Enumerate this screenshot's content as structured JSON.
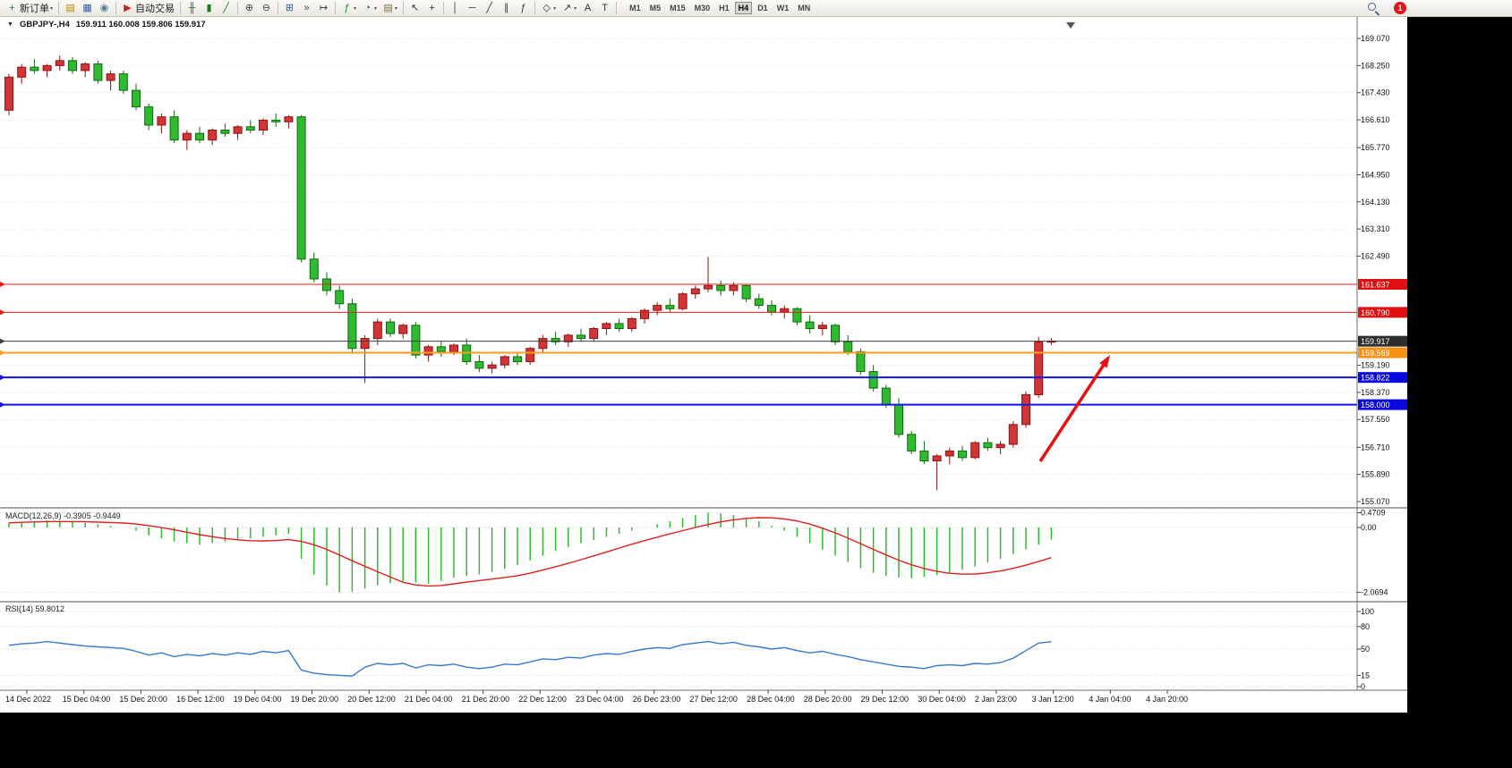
{
  "toolbar": {
    "caret_glyph": "▾",
    "notification_count": "1",
    "icons": [
      {
        "name": "new-order-icon",
        "glyph": "+",
        "color": "#168a16",
        "label": "新订单",
        "caret": true
      },
      {
        "sep": true
      },
      {
        "name": "market-watch-icon",
        "glyph": "▤",
        "color": "#b8860b"
      },
      {
        "name": "data-window-icon",
        "glyph": "▦",
        "color": "#2f5fa3"
      },
      {
        "name": "navigator-icon",
        "glyph": "◉",
        "color": "#5a7a9a"
      },
      {
        "sep": true
      },
      {
        "name": "auto-trading-icon",
        "glyph": "▶",
        "color": "#c22727",
        "label": "自动交易"
      },
      {
        "sep": true
      },
      {
        "name": "bar-chart-icon",
        "glyph": "╫",
        "color": "#1e7a1e"
      },
      {
        "name": "candlestick-chart-icon",
        "glyph": "▮",
        "color": "#1e7a1e"
      },
      {
        "name": "line-chart-icon",
        "glyph": "╱",
        "color": "#1e7a1e"
      },
      {
        "sep": true
      },
      {
        "name": "zoom-in-icon",
        "glyph": "⊕",
        "color": "#444444"
      },
      {
        "name": "zoom-out-icon",
        "glyph": "⊖",
        "color": "#444444"
      },
      {
        "sep": true
      },
      {
        "name": "tile-windows-icon",
        "glyph": "⊞",
        "color": "#2f5fa3"
      },
      {
        "name": "auto-scroll-icon",
        "glyph": "»",
        "color": "#444444"
      },
      {
        "name": "chart-shift-icon",
        "glyph": "↦",
        "color": "#444444"
      },
      {
        "sep": true
      },
      {
        "name": "indicators-icon",
        "glyph": "ƒ",
        "color": "#168a16",
        "caret": true
      },
      {
        "name": "periods-icon",
        "glyph": "◔",
        "color": "#444444",
        "caret": true
      },
      {
        "name": "templates-icon",
        "glyph": "▤",
        "color": "#8a6d3b",
        "caret": true
      },
      {
        "sep": true
      },
      {
        "name": "cursor-icon",
        "glyph": "↖",
        "color": "#333333"
      },
      {
        "name": "crosshair-icon",
        "glyph": "+",
        "color": "#333333"
      },
      {
        "sep": true
      },
      {
        "name": "vertical-line-icon",
        "glyph": "│",
        "color": "#333333"
      },
      {
        "name": "horizontal-line-icon",
        "glyph": "─",
        "color": "#333333"
      },
      {
        "name": "trendline-icon",
        "glyph": "╱",
        "color": "#333333"
      },
      {
        "name": "channel-icon",
        "glyph": "∥",
        "color": "#333333"
      },
      {
        "name": "fibonacci-icon",
        "glyph": "ƒ",
        "color": "#333333"
      },
      {
        "sep": true
      },
      {
        "name": "shapes-icon",
        "glyph": "◇",
        "color": "#333333",
        "caret": true
      },
      {
        "name": "arrows-icon",
        "glyph": "↗",
        "color": "#333333",
        "caret": true
      },
      {
        "name": "text-icon",
        "glyph": "A",
        "color": "#333333"
      },
      {
        "name": "text-label-icon",
        "glyph": "T",
        "color": "#333333"
      },
      {
        "sep": true
      }
    ],
    "timeframes": {
      "items": [
        "M1",
        "M5",
        "M15",
        "M30",
        "H1",
        "H4",
        "D1",
        "W1",
        "MN"
      ],
      "active": "H4"
    }
  },
  "chart": {
    "expander_glyph": "▼",
    "title_symbol": "GBPJPY-,H4",
    "title_ohlc": "159.911 160.008 159.806 159.917"
  },
  "chart_data": [
    {
      "type": "candlestick",
      "symbol": "GBPJPY-",
      "timeframe": "H4",
      "last_ohlc": {
        "open": 159.911,
        "high": 160.008,
        "low": 159.806,
        "close": 159.917
      },
      "ylim": [
        155.07,
        169.07
      ],
      "up_color": "#d23535",
      "down_color": "#2fba2f",
      "price_grid": [
        "169.070",
        "168.250",
        "167.430",
        "166.610",
        "165.770",
        "164.950",
        "164.130",
        "163.310",
        "162.490",
        "159.190",
        "158.370",
        "157.550",
        "156.710",
        "155.890",
        "155.070"
      ],
      "time_labels": [
        "14 Dec 2022",
        "15 Dec 04:00",
        "15 Dec 20:00",
        "16 Dec 12:00",
        "19 Dec 04:00",
        "19 Dec 20:00",
        "20 Dec 12:00",
        "21 Dec 04:00",
        "21 Dec 20:00",
        "22 Dec 12:00",
        "23 Dec 04:00",
        "26 Dec 23:00",
        "27 Dec 12:00",
        "28 Dec 04:00",
        "28 Dec 20:00",
        "29 Dec 12:00",
        "30 Dec 04:00",
        "2 Jan 23:00",
        "3 Jan 12:00",
        "4 Jan 04:00",
        "4 Jan 20:00"
      ],
      "levels": [
        {
          "price": 161.637,
          "label": "161.637",
          "color": "#f01818",
          "badge_bg": "#e01010",
          "width": 1
        },
        {
          "price": 160.79,
          "label": "160.790",
          "color": "#f01818",
          "badge_bg": "#e01010",
          "width": 1
        },
        {
          "price": 159.917,
          "label": "159.917",
          "color": "#3c3c3c",
          "badge_bg": "#2e2e2e",
          "width": 1,
          "current": true
        },
        {
          "price": 159.569,
          "label": "159.569",
          "color": "#ff9d1e",
          "badge_bg": "#f79216",
          "width": 2
        },
        {
          "price": 158.822,
          "label": "158.822",
          "color": "#1414e6",
          "badge_bg": "#0a0ae0",
          "width": 2
        },
        {
          "price": 158.0,
          "label": "158.000",
          "color": "#1414e6",
          "badge_bg": "#0a0ae0",
          "width": 2
        }
      ],
      "annotation": {
        "type": "arrow",
        "color": "#e81010",
        "from_price": 156.45,
        "to_price": 159.6,
        "direction": "up"
      },
      "candles": [
        [
          166.9,
          168.0,
          166.75,
          167.9
        ],
        [
          167.9,
          168.3,
          167.7,
          168.2
        ],
        [
          168.2,
          168.45,
          168.0,
          168.1
        ],
        [
          168.1,
          168.3,
          167.9,
          168.25
        ],
        [
          168.25,
          168.55,
          168.1,
          168.4
        ],
        [
          168.4,
          168.5,
          168.0,
          168.1
        ],
        [
          168.1,
          168.35,
          167.9,
          168.3
        ],
        [
          168.3,
          168.4,
          167.7,
          167.8
        ],
        [
          167.8,
          168.1,
          167.5,
          168.0
        ],
        [
          168.0,
          168.1,
          167.4,
          167.5
        ],
        [
          167.5,
          167.7,
          166.9,
          167.0
        ],
        [
          167.0,
          167.1,
          166.3,
          166.45
        ],
        [
          166.45,
          166.8,
          166.2,
          166.7
        ],
        [
          166.7,
          166.9,
          165.9,
          166.0
        ],
        [
          166.0,
          166.3,
          165.7,
          166.2
        ],
        [
          166.2,
          166.4,
          165.9,
          166.0
        ],
        [
          166.0,
          166.35,
          165.85,
          166.3
        ],
        [
          166.3,
          166.5,
          166.1,
          166.2
        ],
        [
          166.2,
          166.45,
          166.0,
          166.4
        ],
        [
          166.4,
          166.6,
          166.2,
          166.3
        ],
        [
          166.3,
          166.65,
          166.15,
          166.6
        ],
        [
          166.6,
          166.8,
          166.4,
          166.55
        ],
        [
          166.55,
          166.75,
          166.35,
          166.7
        ],
        [
          166.7,
          166.75,
          162.3,
          162.4
        ],
        [
          162.4,
          162.6,
          161.7,
          161.8
        ],
        [
          161.8,
          162.0,
          161.3,
          161.45
        ],
        [
          161.45,
          161.6,
          160.9,
          161.05
        ],
        [
          161.05,
          161.2,
          159.55,
          159.7
        ],
        [
          159.7,
          160.1,
          158.65,
          160.0
        ],
        [
          160.0,
          160.6,
          159.8,
          160.5
        ],
        [
          160.5,
          160.6,
          160.05,
          160.15
        ],
        [
          160.15,
          160.45,
          160.0,
          160.4
        ],
        [
          160.4,
          160.5,
          159.4,
          159.5
        ],
        [
          159.5,
          159.8,
          159.3,
          159.75
        ],
        [
          159.75,
          159.9,
          159.45,
          159.6
        ],
        [
          159.6,
          159.85,
          159.5,
          159.8
        ],
        [
          159.8,
          160.0,
          159.2,
          159.3
        ],
        [
          159.3,
          159.5,
          158.98,
          159.1
        ],
        [
          159.1,
          159.3,
          158.95,
          159.2
        ],
        [
          159.2,
          159.5,
          159.1,
          159.45
        ],
        [
          159.45,
          159.6,
          159.2,
          159.3
        ],
        [
          159.3,
          159.75,
          159.2,
          159.7
        ],
        [
          159.7,
          160.1,
          159.6,
          160.0
        ],
        [
          160.0,
          160.2,
          159.8,
          159.9
        ],
        [
          159.9,
          160.15,
          159.75,
          160.1
        ],
        [
          160.1,
          160.3,
          159.9,
          160.0
        ],
        [
          160.0,
          160.35,
          159.9,
          160.3
        ],
        [
          160.3,
          160.5,
          160.1,
          160.45
        ],
        [
          160.45,
          160.6,
          160.2,
          160.3
        ],
        [
          160.3,
          160.65,
          160.2,
          160.6
        ],
        [
          160.6,
          160.9,
          160.45,
          160.85
        ],
        [
          160.85,
          161.1,
          160.7,
          161.0
        ],
        [
          161.0,
          161.2,
          160.8,
          160.9
        ],
        [
          160.9,
          161.4,
          160.85,
          161.35
        ],
        [
          161.35,
          161.6,
          161.2,
          161.5
        ],
        [
          161.5,
          162.47,
          161.4,
          161.6
        ],
        [
          161.6,
          161.75,
          161.3,
          161.45
        ],
        [
          161.45,
          161.7,
          161.3,
          161.6
        ],
        [
          161.6,
          161.65,
          161.1,
          161.2
        ],
        [
          161.2,
          161.35,
          160.9,
          161.0
        ],
        [
          161.0,
          161.15,
          160.7,
          160.8
        ],
        [
          160.8,
          161.0,
          160.6,
          160.9
        ],
        [
          160.9,
          160.95,
          160.4,
          160.5
        ],
        [
          160.5,
          160.7,
          160.15,
          160.3
        ],
        [
          160.3,
          160.5,
          160.1,
          160.4
        ],
        [
          160.4,
          160.45,
          159.8,
          159.9
        ],
        [
          159.9,
          160.1,
          159.5,
          159.6
        ],
        [
          159.6,
          159.7,
          158.9,
          159.0
        ],
        [
          159.0,
          159.2,
          158.4,
          158.5
        ],
        [
          158.5,
          158.6,
          157.9,
          158.0
        ],
        [
          158.0,
          158.2,
          157.0,
          157.1
        ],
        [
          157.1,
          157.2,
          156.5,
          156.6
        ],
        [
          156.6,
          156.9,
          156.2,
          156.3
        ],
        [
          156.3,
          156.5,
          155.42,
          156.45
        ],
        [
          156.45,
          156.7,
          156.2,
          156.6
        ],
        [
          156.6,
          156.75,
          156.3,
          156.4
        ],
        [
          156.4,
          156.9,
          156.35,
          156.85
        ],
        [
          156.85,
          157.0,
          156.6,
          156.7
        ],
        [
          156.7,
          156.9,
          156.5,
          156.8
        ],
        [
          156.8,
          157.5,
          156.7,
          157.4
        ],
        [
          157.4,
          158.4,
          157.3,
          158.3
        ],
        [
          158.3,
          160.05,
          158.2,
          159.9
        ],
        [
          159.911,
          160.008,
          159.806,
          159.917
        ]
      ]
    },
    {
      "type": "macd_histogram",
      "label": "MACD(12,26,9)",
      "value_text": "-0.3905 -0.9449",
      "macd_value": -0.3905,
      "signal_value": -0.9449,
      "scale_labels": [
        "0.4709",
        "0.00",
        "-2.0694"
      ],
      "histogram_color": "#2fba2f",
      "signal_color": "#e02020",
      "values": [
        0.15,
        0.18,
        0.2,
        0.22,
        0.2,
        0.18,
        0.15,
        0.1,
        0.05,
        0.0,
        -0.1,
        -0.25,
        -0.35,
        -0.45,
        -0.5,
        -0.55,
        -0.5,
        -0.45,
        -0.4,
        -0.35,
        -0.3,
        -0.25,
        -0.2,
        -1.0,
        -1.5,
        -1.85,
        -2.0694,
        -2.05,
        -1.95,
        -1.85,
        -1.78,
        -1.72,
        -1.76,
        -1.8,
        -1.7,
        -1.6,
        -1.55,
        -1.5,
        -1.42,
        -1.32,
        -1.2,
        -1.05,
        -0.9,
        -0.75,
        -0.62,
        -0.5,
        -0.4,
        -0.3,
        -0.2,
        -0.1,
        0.0,
        0.1,
        0.2,
        0.3,
        0.4,
        0.4709,
        0.45,
        0.4,
        0.3,
        0.2,
        0.05,
        -0.1,
        -0.3,
        -0.5,
        -0.7,
        -0.9,
        -1.1,
        -1.3,
        -1.45,
        -1.55,
        -1.6,
        -1.62,
        -1.58,
        -1.52,
        -1.45,
        -1.35,
        -1.25,
        -1.12,
        -1.0,
        -0.85,
        -0.7,
        -0.55,
        -0.3905
      ]
    },
    {
      "type": "rsi_line",
      "label": "RSI(14)",
      "value_text": "59.8012",
      "rsi_value": 59.8012,
      "level_labels": [
        "100",
        "80",
        "50",
        "15",
        "0"
      ],
      "line_color": "#3a77d0",
      "values": [
        55,
        57,
        58,
        60,
        58,
        56,
        54,
        53,
        52,
        51,
        47,
        42,
        45,
        40,
        43,
        41,
        44,
        42,
        45,
        43,
        47,
        45,
        48,
        22,
        18,
        16,
        15,
        14,
        26,
        31,
        29,
        31,
        25,
        29,
        28,
        30,
        26,
        24,
        26,
        30,
        29,
        33,
        37,
        36,
        39,
        38,
        42,
        44,
        43,
        47,
        50,
        52,
        51,
        56,
        58,
        60,
        57,
        59,
        55,
        53,
        50,
        52,
        48,
        45,
        47,
        43,
        40,
        36,
        33,
        30,
        27,
        26,
        24,
        28,
        29,
        28,
        31,
        30,
        32,
        38,
        48,
        58,
        59.8
      ]
    }
  ]
}
